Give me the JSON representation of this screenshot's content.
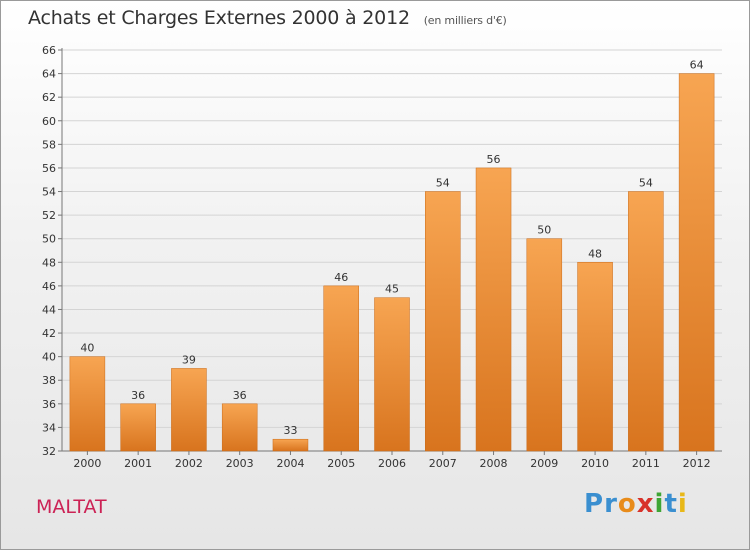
{
  "chart_data": {
    "type": "bar",
    "title": "Achats et Charges Externes 2000 à 2012",
    "subtitle": "(en milliers d'€)",
    "categories": [
      "2000",
      "2001",
      "2002",
      "2003",
      "2004",
      "2005",
      "2006",
      "2007",
      "2008",
      "2009",
      "2010",
      "2011",
      "2012"
    ],
    "values": [
      40,
      36,
      39,
      36,
      33,
      46,
      45,
      54,
      56,
      50,
      48,
      54,
      64
    ],
    "ylim": [
      32,
      66
    ],
    "yticks": [
      32,
      34,
      36,
      38,
      40,
      42,
      44,
      46,
      48,
      50,
      52,
      54,
      56,
      58,
      60,
      62,
      64,
      66
    ],
    "grid": true,
    "bar_color_top": "#f7a552",
    "bar_color_bottom": "#d8741e"
  },
  "commune": "MALTAT",
  "logo": {
    "text": "Proxiti",
    "letters": [
      {
        "ch": "P",
        "color": "#3a8fd0"
      },
      {
        "ch": "r",
        "color": "#3a8fd0"
      },
      {
        "ch": "o",
        "color": "#e88b1a"
      },
      {
        "ch": "x",
        "color": "#d8322a"
      },
      {
        "ch": "i",
        "color": "#3fa535"
      },
      {
        "ch": "t",
        "color": "#3a8fd0"
      },
      {
        "ch": "i",
        "color": "#e8b818"
      }
    ]
  }
}
